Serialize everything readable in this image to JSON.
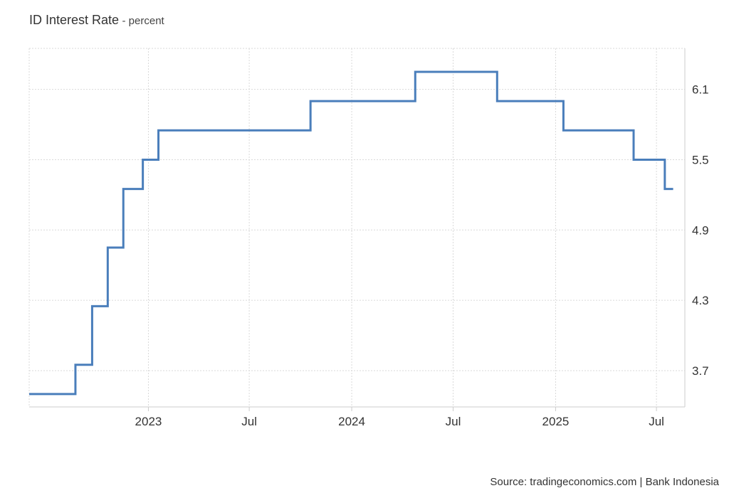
{
  "header": {
    "title": "ID Interest Rate",
    "unit_suffix": "- percent"
  },
  "footer": {
    "source": "Source: tradingeconomics.com | Bank Indonesia"
  },
  "colors": {
    "line": "#4a7ebb",
    "grid": "#d9d9d9",
    "axis": "#cccccc",
    "text": "#333333"
  },
  "chart_data": {
    "type": "line",
    "step": true,
    "title": "ID Interest Rate",
    "ylabel": "percent",
    "xlabel": "",
    "xlim": [
      "2022-06-01",
      "2025-08-21"
    ],
    "ylim": [
      3.39,
      6.45
    ],
    "y_axis_position": "right",
    "grid": true,
    "x_ticks": [
      {
        "date": "2023-01-01",
        "label": "2023"
      },
      {
        "date": "2023-07-01",
        "label": "Jul"
      },
      {
        "date": "2024-01-01",
        "label": "2024"
      },
      {
        "date": "2024-07-01",
        "label": "Jul"
      },
      {
        "date": "2025-01-01",
        "label": "2025"
      },
      {
        "date": "2025-07-01",
        "label": "Jul"
      }
    ],
    "y_ticks": [
      3.7,
      4.3,
      4.9,
      5.5,
      6.1
    ],
    "series": [
      {
        "x": [
          "2022-06-01",
          "2022-08-23",
          "2022-09-22",
          "2022-10-20",
          "2022-11-17",
          "2022-12-22",
          "2023-01-19",
          "2023-10-19",
          "2024-04-24",
          "2024-09-18",
          "2025-01-15",
          "2025-05-21",
          "2025-07-16",
          "2025-07-31"
        ],
        "y": [
          3.5,
          3.75,
          4.25,
          4.75,
          5.25,
          5.5,
          5.75,
          6.0,
          6.25,
          6.0,
          5.75,
          5.5,
          5.25,
          5.25
        ]
      }
    ]
  }
}
